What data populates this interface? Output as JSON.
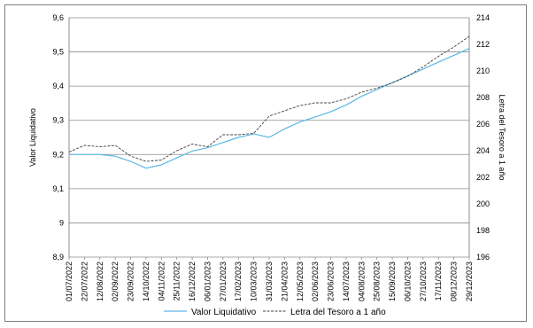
{
  "chart_data": {
    "type": "line",
    "title": "",
    "ylabel": "Valor Liquidativo",
    "y2label": "Letra del Tesoro a 1 año",
    "ylim": [
      8.9,
      9.6
    ],
    "y2lim": [
      196,
      214
    ],
    "yticks": [
      "9,6",
      "9,5",
      "9,4",
      "9,3",
      "9,2",
      "9,1",
      "9",
      "8,9"
    ],
    "y2ticks": [
      "214",
      "212",
      "210",
      "208",
      "206",
      "204",
      "202",
      "200",
      "198",
      "196"
    ],
    "xticks": [
      "01/07/2022",
      "22/07/2022",
      "12/08/2022",
      "02/09/2022",
      "23/09/2022",
      "14/10/2022",
      "04/11/2022",
      "25/11/2022",
      "16/12/2022",
      "06/01/2023",
      "27/01/2023",
      "17/02/2023",
      "10/03/2023",
      "31/03/2023",
      "21/04/2023",
      "12/05/2023",
      "02/06/2023",
      "23/06/2023",
      "14/07/2023",
      "04/08/2023",
      "25/08/2023",
      "15/09/2023",
      "06/10/2023",
      "27/10/2023",
      "17/11/2023",
      "08/12/2023",
      "29/12/2023"
    ],
    "grid": true,
    "legend_position": "bottom",
    "series": [
      {
        "name": "Valor Liquidativo",
        "axis": "left",
        "color": "#5cb7e6",
        "style": "solid",
        "values": [
          9.2,
          9.2,
          9.2,
          9.195,
          9.18,
          9.16,
          9.17,
          9.19,
          9.21,
          9.22,
          9.235,
          9.25,
          9.26,
          9.25,
          9.275,
          9.295,
          9.31,
          9.325,
          9.345,
          9.37,
          9.39,
          9.41,
          9.43,
          9.45,
          9.47,
          9.49,
          9.51
        ]
      },
      {
        "name": "Letra del Tesoro a 1 año",
        "axis": "right",
        "color": "#404040",
        "style": "dashed",
        "values": [
          203.9,
          204.4,
          204.3,
          204.4,
          203.6,
          203.2,
          203.3,
          204.0,
          204.5,
          204.3,
          205.2,
          205.2,
          205.3,
          206.6,
          207.0,
          207.4,
          207.6,
          207.6,
          207.9,
          208.4,
          208.7,
          209.1,
          209.6,
          210.3,
          211.1,
          211.8,
          212.6
        ]
      }
    ]
  }
}
